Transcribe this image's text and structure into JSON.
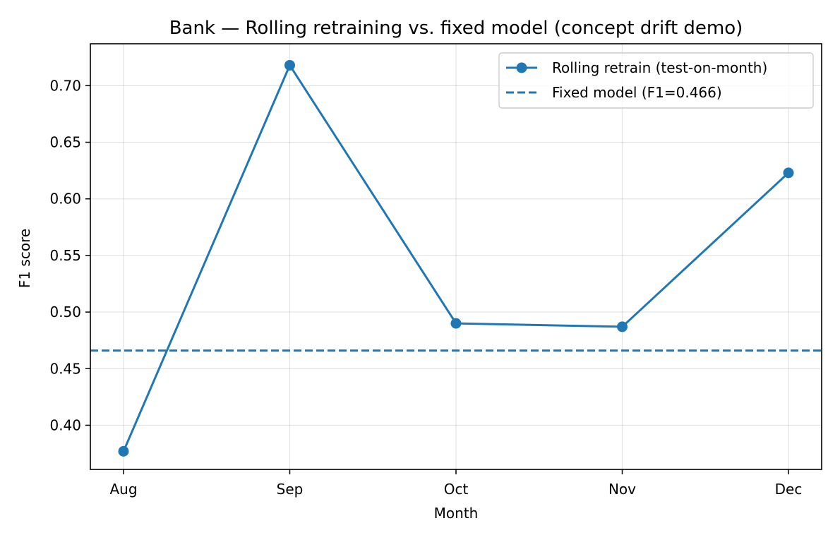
{
  "chart_data": {
    "type": "line",
    "title": "Bank — Rolling retraining vs. fixed model (concept drift demo)",
    "xlabel": "Month",
    "ylabel": "F1 score",
    "categories": [
      "Aug",
      "Sep",
      "Oct",
      "Nov",
      "Dec"
    ],
    "ylim": [
      0.361,
      0.737
    ],
    "yticks": [
      0.4,
      0.45,
      0.5,
      0.55,
      0.6,
      0.65,
      0.7
    ],
    "ytick_labels": [
      "0.40",
      "0.45",
      "0.50",
      "0.55",
      "0.60",
      "0.65",
      "0.70"
    ],
    "grid": true,
    "legend_position": "top-right",
    "series": [
      {
        "name": "Rolling retrain (test-on-month)",
        "values": [
          0.377,
          0.718,
          0.49,
          0.487,
          0.623
        ],
        "color": "#1f77b4",
        "style": "solid",
        "marker": "circle"
      }
    ],
    "reference_lines": [
      {
        "name": "Fixed model (F1=0.466)",
        "value": 0.466,
        "color": "#1f77b4",
        "style": "dashed"
      }
    ]
  }
}
